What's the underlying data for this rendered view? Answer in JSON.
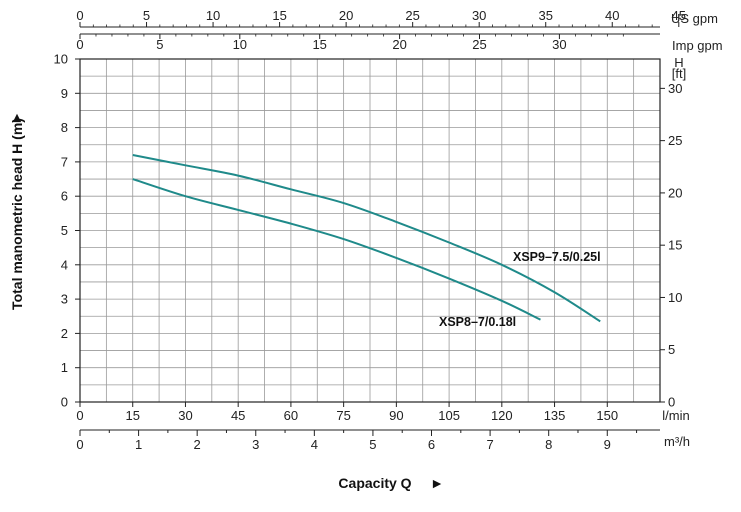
{
  "chart_data": {
    "type": "line",
    "xlabel": "Capacity Q",
    "ylabel": "Total manometric head H (m)",
    "axis_arrow": "►",
    "ylim": [
      0,
      10
    ],
    "xlim_lmin": [
      0,
      165
    ],
    "grid": true,
    "y_ticks": [
      "0",
      "1",
      "2",
      "3",
      "4",
      "5",
      "6",
      "7",
      "8",
      "9",
      "10"
    ],
    "x_lmin": {
      "unit": "l/min",
      "values": [
        0,
        15,
        30,
        45,
        60,
        75,
        90,
        105,
        120,
        135,
        150
      ]
    },
    "x_m3h": {
      "unit": "m³/h",
      "values": [
        0,
        1,
        2,
        3,
        4,
        5,
        6,
        7,
        8,
        9
      ]
    },
    "x_usgpm": {
      "unit": "US gpm",
      "values": [
        0,
        5,
        10,
        15,
        20,
        25,
        30,
        35,
        40,
        45
      ]
    },
    "x_impgpm": {
      "unit": "Imp gpm",
      "values": [
        0,
        5,
        10,
        15,
        20,
        25,
        30
      ]
    },
    "y_ft": {
      "unit_top": "H",
      "unit_bottom": "[ft]",
      "values": [
        0,
        5,
        10,
        15,
        20,
        25,
        30
      ]
    },
    "series": [
      {
        "name": "XSP9–7.5/0.25l",
        "color": "#1f8a8a",
        "x": [
          15,
          30,
          45,
          60,
          75,
          90,
          105,
          120,
          135,
          148
        ],
        "y": [
          7.2,
          6.9,
          6.6,
          6.2,
          5.8,
          5.25,
          4.65,
          4.0,
          3.2,
          2.35
        ]
      },
      {
        "name": "XSP8–7/0.18l",
        "color": "#1f8a8a",
        "x": [
          15,
          30,
          45,
          60,
          75,
          90,
          105,
          120,
          131
        ],
        "y": [
          6.5,
          6.0,
          5.6,
          5.2,
          4.75,
          4.2,
          3.6,
          2.95,
          2.4
        ]
      }
    ]
  }
}
